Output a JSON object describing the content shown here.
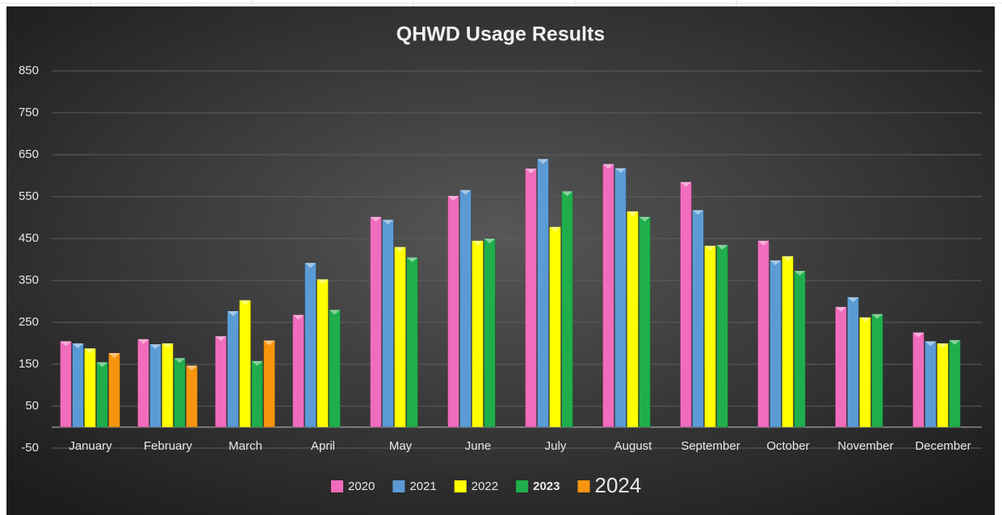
{
  "chart_data": {
    "type": "bar",
    "title": "QHWD Usage Results",
    "categories": [
      "January",
      "February",
      "March",
      "April",
      "May",
      "June",
      "July",
      "August",
      "September",
      "October",
      "November",
      "December"
    ],
    "series": [
      {
        "name": "2020",
        "color": "#f06cbc",
        "values": [
          205,
          210,
          217,
          268,
          502,
          552,
          617,
          628,
          585,
          445,
          287,
          226
        ]
      },
      {
        "name": "2021",
        "color": "#5b9bd5",
        "values": [
          200,
          198,
          277,
          392,
          495,
          566,
          640,
          618,
          518,
          398,
          310,
          205
        ]
      },
      {
        "name": "2022",
        "color": "#ffff00",
        "values": [
          188,
          200,
          303,
          353,
          430,
          445,
          478,
          515,
          433,
          408,
          262,
          200
        ]
      },
      {
        "name": "2023",
        "color": "#1fae4b",
        "values": [
          155,
          165,
          158,
          280,
          405,
          450,
          563,
          502,
          435,
          373,
          270,
          208
        ]
      },
      {
        "name": "2024",
        "color": "#f7950f",
        "values": [
          177,
          147,
          207,
          null,
          null,
          null,
          null,
          null,
          null,
          null,
          null,
          null
        ]
      }
    ],
    "ylim": [
      -50,
      850
    ],
    "yticks": [
      -50,
      50,
      150,
      250,
      350,
      450,
      550,
      650,
      750,
      850
    ],
    "grid": true,
    "legend": "bottom"
  }
}
